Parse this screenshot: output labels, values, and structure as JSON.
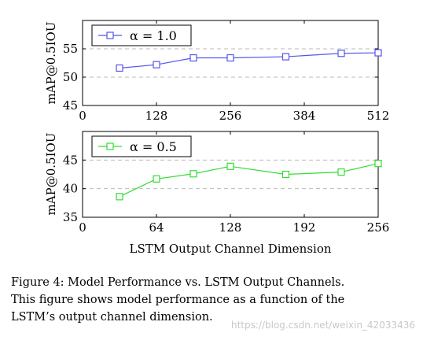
{
  "chart_data": [
    {
      "type": "line",
      "ylabel": "mAP@0.5IOU",
      "ylim": [
        45,
        60
      ],
      "yticks": [
        45,
        50,
        55
      ],
      "xlim": [
        0,
        512
      ],
      "xticks": [
        0,
        128,
        256,
        384,
        512
      ],
      "grid": "horizontal dashed",
      "legend_position": "top-left",
      "series": [
        {
          "name": "α = 1.0",
          "color": "#5555ee",
          "marker": "square",
          "x": [
            64,
            128,
            192,
            256,
            352,
            448,
            512
          ],
          "values": [
            51.6,
            52.2,
            53.4,
            53.4,
            53.6,
            54.2,
            54.3
          ]
        }
      ]
    },
    {
      "type": "line",
      "ylabel": "mAP@0.5IOU",
      "xlabel": "LSTM Output Channel Dimension",
      "ylim": [
        35,
        50
      ],
      "yticks": [
        35,
        40,
        45
      ],
      "xlim": [
        0,
        256
      ],
      "xticks": [
        0,
        64,
        128,
        192,
        256
      ],
      "grid": "horizontal dashed",
      "legend_position": "top-left",
      "series": [
        {
          "name": "α = 0.5",
          "color": "#33dd33",
          "marker": "square",
          "x": [
            32,
            64,
            96,
            128,
            176,
            224,
            256
          ],
          "values": [
            38.6,
            41.7,
            42.6,
            43.9,
            42.5,
            42.9,
            44.4
          ]
        }
      ]
    }
  ],
  "caption": {
    "line1": "Figure 4: Model Performance vs. LSTM Output Channels.",
    "line2": "This figure shows model performance as a function of the",
    "line3": "LSTM’s output channel dimension."
  },
  "watermark": "https://blog.csdn.net/weixin_42033436"
}
